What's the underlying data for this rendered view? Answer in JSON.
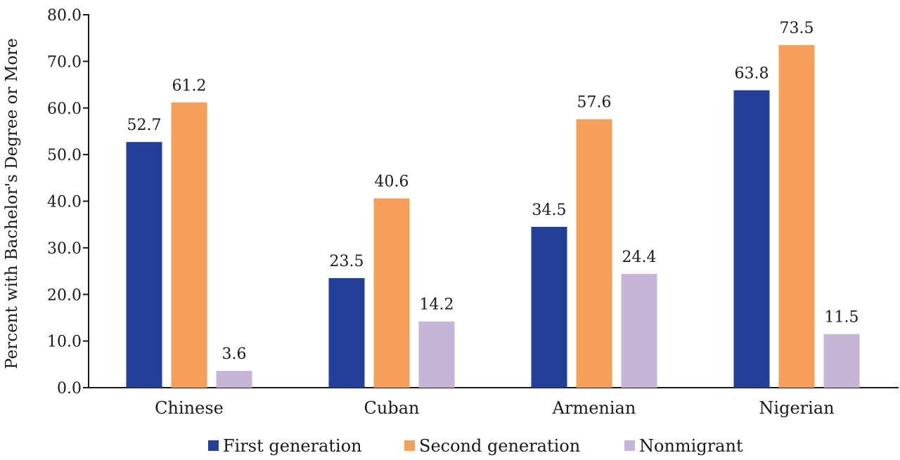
{
  "chart_data": {
    "type": "bar",
    "categories": [
      "Chinese",
      "Cuban",
      "Armenian",
      "Nigerian"
    ],
    "series": [
      {
        "name": "First generation",
        "color": "#233f96",
        "values": [
          52.7,
          23.5,
          34.5,
          63.8
        ]
      },
      {
        "name": "Second generation",
        "color": "#f5a05a",
        "values": [
          61.2,
          40.6,
          57.6,
          73.5
        ]
      },
      {
        "name": "Nonmigrant",
        "color": "#c5b6d8",
        "values": [
          3.6,
          14.2,
          24.4,
          11.5
        ]
      }
    ],
    "ylabel": "Percent with Bachelor's Degree or More",
    "ylim": [
      0,
      80
    ],
    "yticks": [
      "0.0",
      "10.0",
      "20.0",
      "30.0",
      "40.0",
      "50.0",
      "60.0",
      "70.0",
      "80.0"
    ],
    "grid": false,
    "legend_position": "bottom"
  }
}
